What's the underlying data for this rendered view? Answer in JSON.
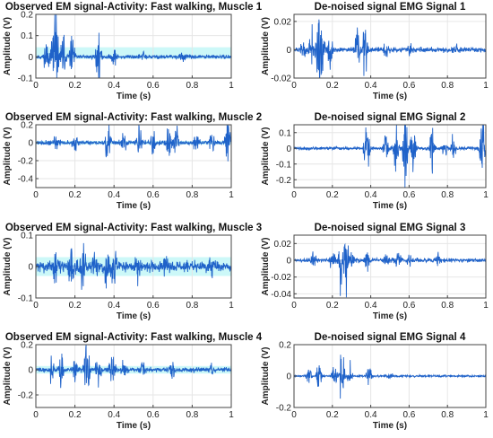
{
  "figure": {
    "colors": {
      "signal": "#1f62c9",
      "grid": "#e6e6e6",
      "axis": "#444444",
      "highlight": "#c6f7f7",
      "red_tick": "#cc2244"
    }
  },
  "chart_data": [
    {
      "type": "line",
      "title": "Observed EM signal-Activity: Fast walking, Muscle  1",
      "xlabel": "Time (s)",
      "ylabel": "Amplitude (V)",
      "xlim": [
        0,
        1
      ],
      "ylim": [
        -0.1,
        0.2
      ],
      "xticks": [
        "0",
        "0.2",
        "0.4",
        "0.6",
        "0.8",
        "1"
      ],
      "yticks": [
        "-0.1",
        "0",
        "0.1",
        "0.2"
      ],
      "grid": true,
      "red_xticks": true,
      "highlight_bands": [
        [
          -0.01,
          0.01
        ],
        [
          0.01,
          0.045
        ]
      ],
      "bursts": [
        [
          0.055,
          0.06
        ],
        [
          0.09,
          0.16
        ],
        [
          0.105,
          0.13
        ],
        [
          0.14,
          0.08
        ],
        [
          0.185,
          0.09
        ],
        [
          0.32,
          0.11
        ],
        [
          0.4,
          0.03
        ],
        [
          0.55,
          0.02
        ],
        [
          0.75,
          0.015
        ]
      ],
      "noise": 0.008,
      "seed": 11
    },
    {
      "type": "line",
      "title": "De-noised signal EMG Signal 1",
      "xlabel": "Time (s)",
      "ylabel": "Amplitude (V)",
      "xlim": [
        0,
        1
      ],
      "ylim": [
        -0.02,
        0.025
      ],
      "xticks": [
        "0",
        "0.2",
        "0.4",
        "0.6",
        "0.8",
        "1"
      ],
      "yticks": [
        "-0.02",
        "0",
        "0.02"
      ],
      "grid": true,
      "red_xticks": false,
      "highlight_bands": [],
      "bursts": [
        [
          0.05,
          0.006
        ],
        [
          0.09,
          0.012
        ],
        [
          0.125,
          0.022
        ],
        [
          0.145,
          0.015
        ],
        [
          0.19,
          0.014
        ],
        [
          0.33,
          0.012
        ],
        [
          0.37,
          0.016
        ],
        [
          0.48,
          0.004
        ],
        [
          0.6,
          0.003
        ],
        [
          0.85,
          0.002
        ]
      ],
      "noise": 0.0015,
      "seed": 12
    },
    {
      "type": "line",
      "title": "Observed EM signal-Activity: Fast walking, Muscle  2",
      "xlabel": "Time (s)",
      "ylabel": "Amplitude (V)",
      "xlim": [
        0,
        1
      ],
      "ylim": [
        -0.5,
        0.2
      ],
      "xticks": [
        "0",
        "0.2",
        "0.4",
        "0.6",
        "0.8",
        "1"
      ],
      "yticks": [
        "-0.4",
        "-0.2",
        "0",
        "0.2"
      ],
      "grid": true,
      "red_xticks": false,
      "highlight_bands": [
        [
          -0.02,
          0.02
        ]
      ],
      "bursts": [
        [
          0.1,
          0.06
        ],
        [
          0.2,
          0.08
        ],
        [
          0.37,
          0.25
        ],
        [
          0.45,
          0.12
        ],
        [
          0.53,
          0.17
        ],
        [
          0.6,
          0.1
        ],
        [
          0.68,
          0.22
        ],
        [
          0.72,
          0.15
        ],
        [
          0.82,
          0.13
        ],
        [
          0.9,
          0.1
        ],
        [
          0.985,
          0.4
        ]
      ],
      "noise": 0.02,
      "seed": 21
    },
    {
      "type": "line",
      "title": "De-noised signal EMG Signal 2",
      "xlabel": "Time (s)",
      "ylabel": "Amplitude (V)",
      "xlim": [
        0,
        1
      ],
      "ylim": [
        -0.25,
        0.15
      ],
      "xticks": [
        "0",
        "0.2",
        "0.4",
        "0.6",
        "0.8",
        "1"
      ],
      "yticks": [
        "-0.2",
        "-0.1",
        "0",
        "0.1"
      ],
      "grid": true,
      "red_xticks": false,
      "highlight_bands": [],
      "bursts": [
        [
          0.38,
          0.18
        ],
        [
          0.48,
          0.08
        ],
        [
          0.53,
          0.12
        ],
        [
          0.58,
          0.22
        ],
        [
          0.62,
          0.15
        ],
        [
          0.72,
          0.12
        ],
        [
          0.79,
          0.06
        ],
        [
          0.83,
          0.07
        ],
        [
          0.98,
          0.19
        ]
      ],
      "noise": 0.008,
      "seed": 22
    },
    {
      "type": "line",
      "title": "Observed EM signal-Activity: Fast walking, Muscle  3",
      "xlabel": "Time (s)",
      "ylabel": "Amplitude (V)",
      "xlim": [
        0,
        1
      ],
      "ylim": [
        -0.1,
        0.1
      ],
      "xticks": [
        "0",
        "0.2",
        "0.4",
        "0.6",
        "0.8",
        "1"
      ],
      "yticks": [
        "-0.1",
        "0",
        "0.1"
      ],
      "grid": true,
      "red_xticks": false,
      "highlight_bands": [
        [
          -0.03,
          0.03
        ]
      ],
      "bursts": [
        [
          0.1,
          0.04
        ],
        [
          0.18,
          0.05
        ],
        [
          0.24,
          0.09
        ],
        [
          0.3,
          0.05
        ],
        [
          0.36,
          0.06
        ],
        [
          0.4,
          0.04
        ],
        [
          0.52,
          0.03
        ],
        [
          0.66,
          0.025
        ],
        [
          0.9,
          0.02
        ]
      ],
      "noise": 0.015,
      "seed": 31
    },
    {
      "type": "line",
      "title": "De-noised signal EMG Signal 3",
      "xlabel": "Time (s)",
      "ylabel": "Amplitude (V)",
      "xlim": [
        0,
        1
      ],
      "ylim": [
        -0.045,
        0.03
      ],
      "xticks": [
        "0",
        "0.2",
        "0.4",
        "0.6",
        "0.8",
        "1"
      ],
      "yticks": [
        "-0.04",
        "-0.02",
        "0",
        "0.02"
      ],
      "grid": true,
      "red_xticks": false,
      "highlight_bands": [],
      "bursts": [
        [
          0.1,
          0.008
        ],
        [
          0.2,
          0.012
        ],
        [
          0.24,
          0.028
        ],
        [
          0.27,
          0.032
        ],
        [
          0.3,
          0.01
        ],
        [
          0.38,
          0.01
        ],
        [
          0.48,
          0.008
        ],
        [
          0.54,
          0.012
        ],
        [
          0.6,
          0.006
        ],
        [
          0.75,
          0.005
        ]
      ],
      "noise": 0.002,
      "seed": 32
    },
    {
      "type": "line",
      "title": "Observed EM signal-Activity: Fast walking, Muscle  4",
      "xlabel": "Time (s)",
      "ylabel": "Amplitude (V)",
      "xlim": [
        0,
        1
      ],
      "ylim": [
        -0.3,
        0.2
      ],
      "xticks": [
        "0",
        "0.2",
        "0.4",
        "0.6",
        "0.8",
        "1"
      ],
      "yticks": [
        "-0.2",
        "0",
        "0.2"
      ],
      "grid": true,
      "red_xticks": false,
      "highlight_bands": [
        [
          -0.03,
          0.03
        ]
      ],
      "bursts": [
        [
          0.08,
          0.08
        ],
        [
          0.13,
          0.12
        ],
        [
          0.2,
          0.08
        ],
        [
          0.26,
          0.22
        ],
        [
          0.32,
          0.08
        ],
        [
          0.39,
          0.13
        ],
        [
          0.45,
          0.06
        ],
        [
          0.55,
          0.05
        ],
        [
          0.7,
          0.04
        ],
        [
          0.9,
          0.03
        ]
      ],
      "noise": 0.015,
      "seed": 41
    },
    {
      "type": "line",
      "title": "De-noised signal EMG Signal 4",
      "xlabel": "Time (s)",
      "ylabel": "Amplitude (V)",
      "xlim": [
        0,
        1
      ],
      "ylim": [
        -0.2,
        0.2
      ],
      "xticks": [
        "0",
        "0.2",
        "0.4",
        "0.6",
        "0.8",
        "1"
      ],
      "yticks": [
        "-0.2",
        "0",
        "0.2"
      ],
      "grid": true,
      "red_xticks": false,
      "highlight_bands": [],
      "bursts": [
        [
          0.08,
          0.05
        ],
        [
          0.13,
          0.1
        ],
        [
          0.21,
          0.07
        ],
        [
          0.25,
          0.18
        ],
        [
          0.29,
          0.06
        ],
        [
          0.39,
          0.07
        ],
        [
          0.5,
          0.02
        ]
      ],
      "noise": 0.005,
      "seed": 42
    }
  ]
}
